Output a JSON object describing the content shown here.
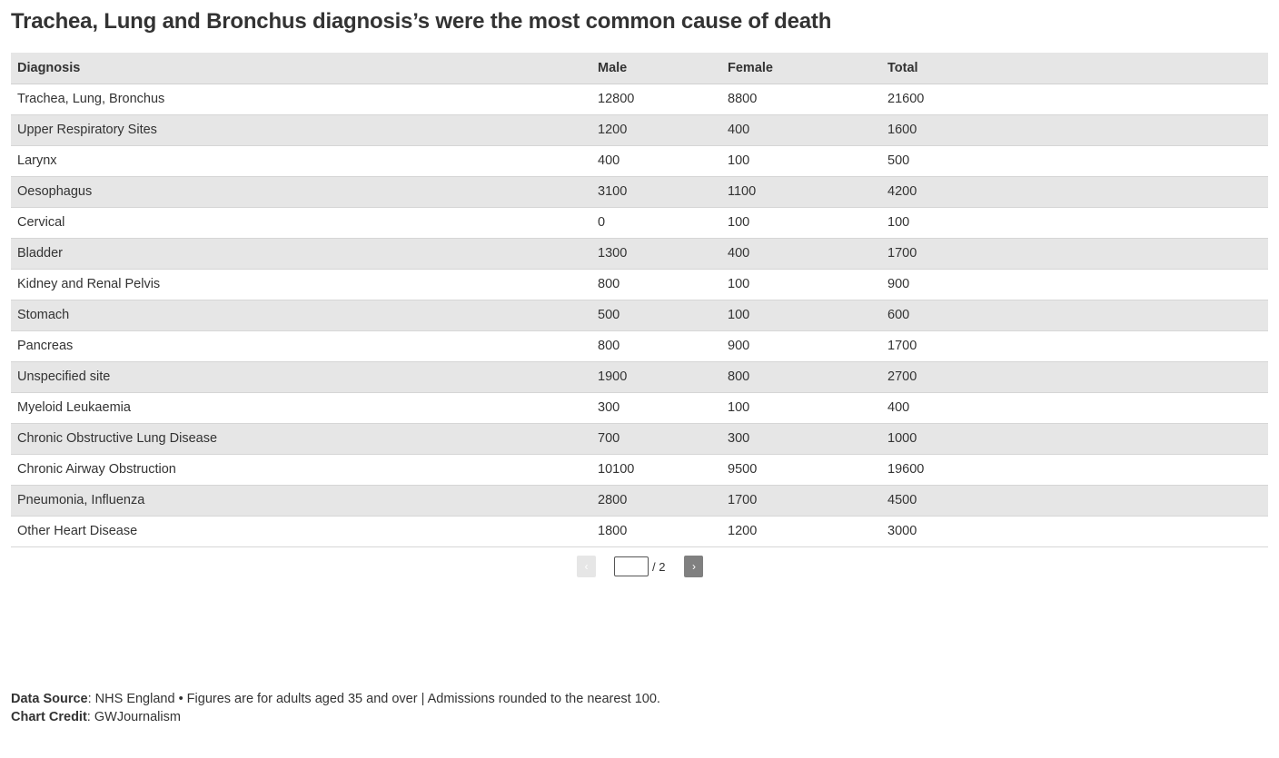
{
  "title": "Trachea, Lung and Bronchus diagnosis’s were the most common cause of death",
  "table": {
    "headers": [
      "Diagnosis",
      "Male",
      "Female",
      "Total"
    ],
    "rows": [
      [
        "Trachea, Lung, Bronchus",
        "12800",
        "8800",
        "21600"
      ],
      [
        "Upper Respiratory Sites",
        "1200",
        "400",
        "1600"
      ],
      [
        "Larynx",
        "400",
        "100",
        "500"
      ],
      [
        "Oesophagus",
        "3100",
        "1100",
        "4200"
      ],
      [
        "Cervical",
        "0",
        "100",
        "100"
      ],
      [
        "Bladder",
        "1300",
        "400",
        "1700"
      ],
      [
        "Kidney and Renal Pelvis",
        "800",
        "100",
        "900"
      ],
      [
        "Stomach",
        "500",
        "100",
        "600"
      ],
      [
        "Pancreas",
        "800",
        "900",
        "1700"
      ],
      [
        "Unspecified site",
        "1900",
        "800",
        "2700"
      ],
      [
        "Myeloid Leukaemia",
        "300",
        "100",
        "400"
      ],
      [
        "Chronic Obstructive Lung Disease",
        "700",
        "300",
        "1000"
      ],
      [
        "Chronic Airway Obstruction",
        "10100",
        "9500",
        "19600"
      ],
      [
        "Pneumonia, Influenza",
        "2800",
        "1700",
        "4500"
      ],
      [
        "Other Heart Disease",
        "1800",
        "1200",
        "3000"
      ]
    ]
  },
  "pagination": {
    "prev_label": "‹",
    "next_label": "›",
    "current_page": "",
    "total_label": "/ 2"
  },
  "footer": {
    "source_label": "Data Source",
    "source_text": ": NHS England • Figures are for adults aged 35 and over | Admissions rounded to the nearest 100.",
    "credit_label": "Chart Credit",
    "credit_text": ": GWJournalism"
  }
}
